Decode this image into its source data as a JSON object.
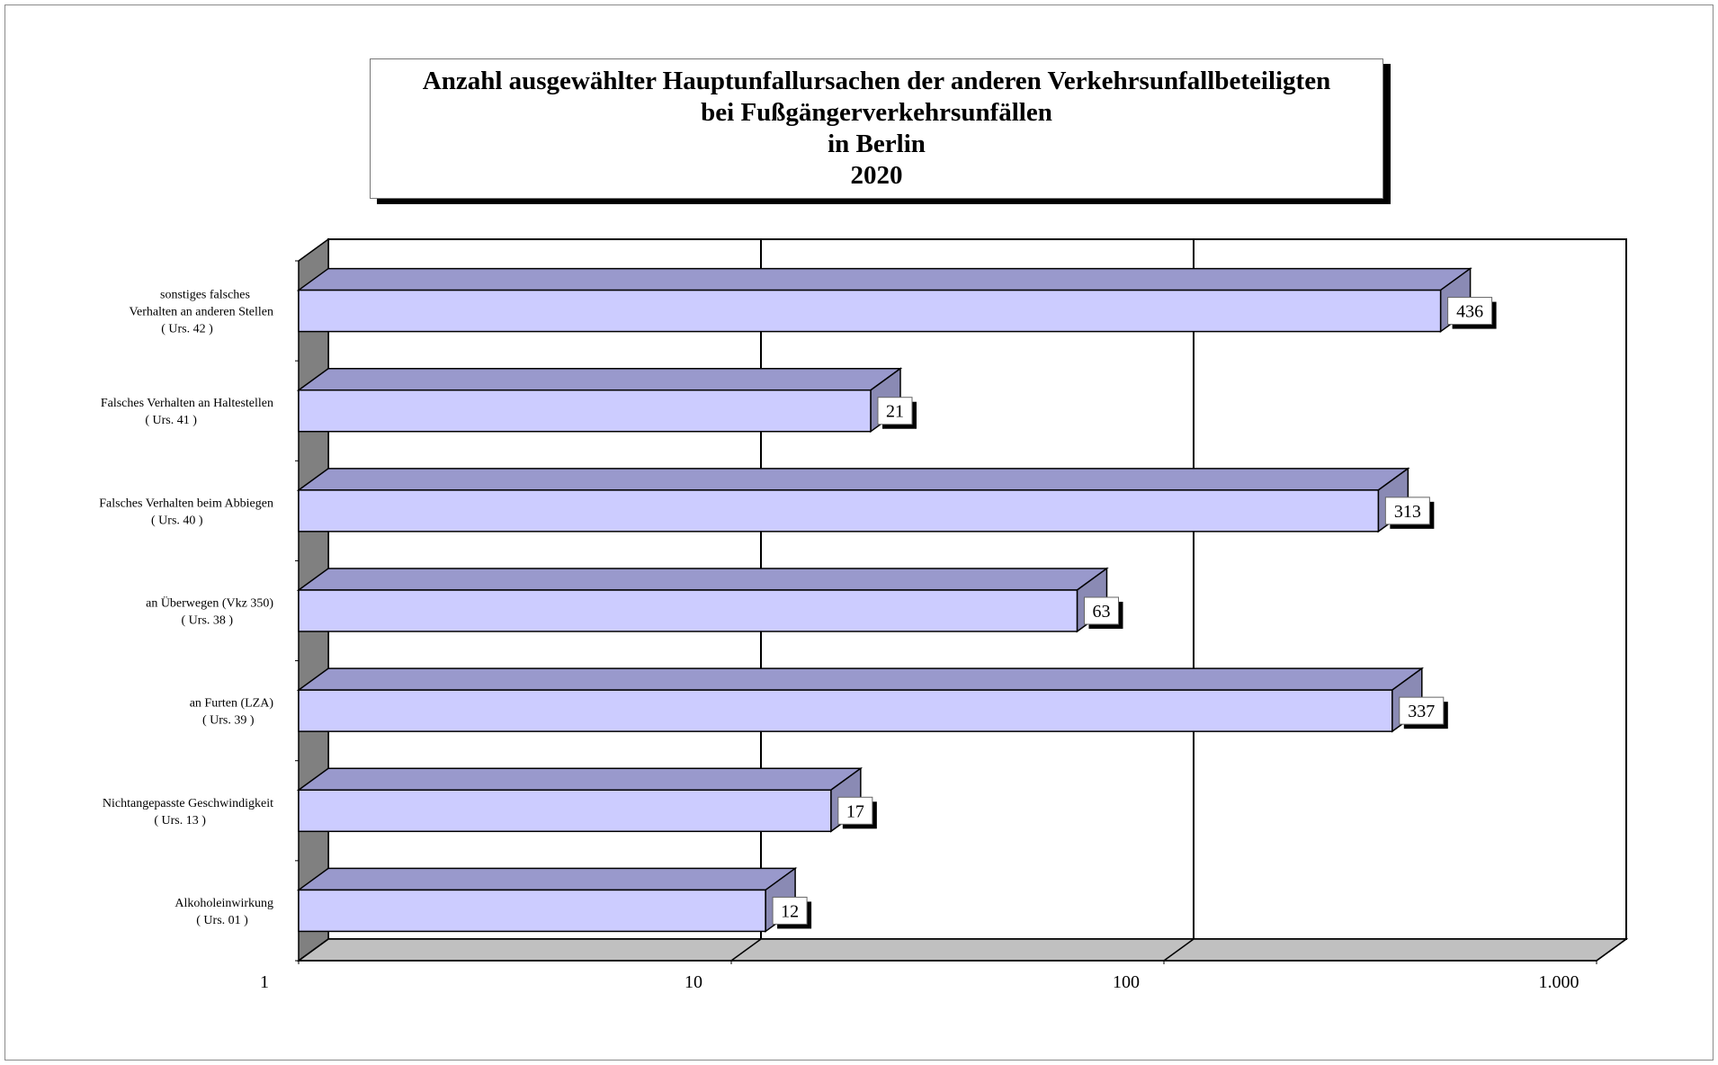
{
  "title": {
    "lines": [
      "Anzahl ausgewählter Hauptunfallursachen der anderen Verkehrsunfallbeteiligten",
      "bei Fußgängerverkehrsunfällen",
      "in Berlin",
      "2020"
    ]
  },
  "colors": {
    "bar_front": "#ccccff",
    "bar_top": "#9999cc",
    "bar_side": "#8a8ab4",
    "left_wall": "#808080",
    "floor": "#c0c0c0",
    "outline": "#000000"
  },
  "chart_data": {
    "type": "bar",
    "orientation": "horizontal",
    "style": "3d",
    "x_scale": "log",
    "xlim": [
      1,
      1000
    ],
    "x_ticks": [
      1,
      10,
      100,
      1000
    ],
    "x_tick_labels": [
      "1",
      "10",
      "100",
      "1.000"
    ],
    "grid": "vertical major gridlines on",
    "categories": [
      {
        "lines": [
          "sonstiges  falsches",
          "Verhalten an anderen Stellen",
          "( Urs. 42 )"
        ],
        "value": 436,
        "value_label": "436"
      },
      {
        "lines": [
          "Falsches Verhalten an Haltestellen",
          "( Urs. 41 )"
        ],
        "value": 21,
        "value_label": "21"
      },
      {
        "lines": [
          "Falsches Verhalten beim Abbiegen",
          "( Urs. 40 )"
        ],
        "value": 313,
        "value_label": "313"
      },
      {
        "lines": [
          "an Überwegen (Vkz 350)",
          "( Urs. 38 )"
        ],
        "value": 63,
        "value_label": "63"
      },
      {
        "lines": [
          "an Furten (LZA)",
          "( Urs. 39 )"
        ],
        "value": 337,
        "value_label": "337"
      },
      {
        "lines": [
          "Nichtangepasste Geschwindigkeit",
          "( Urs. 13 )"
        ],
        "value": 17,
        "value_label": "17"
      },
      {
        "lines": [
          "Alkoholeinwirkung",
          "( Urs. 01 )"
        ],
        "value": 12,
        "value_label": "12"
      }
    ]
  }
}
